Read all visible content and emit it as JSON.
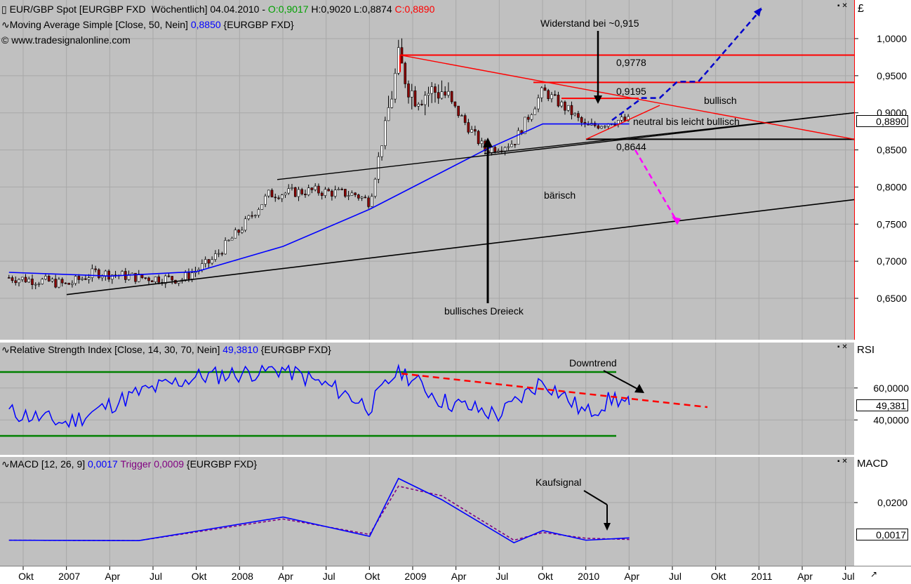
{
  "main_panel": {
    "header_line1": {
      "prefix": "EUR/GBP Spot [EURGBP FXD  Wöchentlich] 04.04.2010 - ",
      "open": "O:0,9017",
      "high_low": " H:0,9020 L:0,8874 ",
      "close": "C:0,8890"
    },
    "header_line2": {
      "label": "Moving Average Simple [Close, 50, Nein] ",
      "value": "0,8850",
      "suffix": " {EURGBP FXD}"
    },
    "header_line3": "© www.tradesignalonline.com",
    "currency_symbol": "£",
    "y_ticks": [
      "1,0000",
      "0,9500",
      "0,9000",
      "0,8500",
      "0,8000",
      "0,7500",
      "0,7000",
      "0,6500"
    ],
    "current_value": "0,8890",
    "annotations": {
      "resistance": "Widerstand bei ~0,915",
      "level_high": "0,9778",
      "level_mid": "0,9195",
      "level_low": "0,8644",
      "bullish": "bullisch",
      "neutral": "neutral bis leicht bullisch",
      "bearish": "bärisch",
      "triangle": "bullisches Dreieck"
    }
  },
  "rsi_panel": {
    "header": {
      "label": "Relative Strength Index [Close, 14, 30, 70, Nein] ",
      "value": "49,3810",
      "suffix": " {EURGBP FXD}"
    },
    "axis_title": "RSI",
    "y_ticks": [
      "60,0000",
      "40,0000"
    ],
    "current_value": "49,381",
    "annotation": "Downtrend"
  },
  "macd_panel": {
    "header": {
      "label": "MACD [12, 26, 9] ",
      "value": "0,0017",
      "trigger_label": " Trigger ",
      "trigger_value": "0,0009",
      "suffix": " {EURGBP FXD}"
    },
    "axis_title": "MACD",
    "y_ticks": [
      "0,0200"
    ],
    "current_value": "0,0017",
    "annotation": "Kaufsignal"
  },
  "x_axis": {
    "labels": [
      "Okt",
      "2007",
      "Apr",
      "Jul",
      "Okt",
      "2008",
      "Apr",
      "Jul",
      "Okt",
      "2009",
      "Apr",
      "Jul",
      "Okt",
      "2010",
      "Apr",
      "Jul",
      "Okt",
      "2011",
      "Apr",
      "Jul"
    ]
  },
  "colors": {
    "background": "#c0c0c0",
    "grid": "#a8a8a8",
    "price_line": "#000000",
    "sma": "#0000ff",
    "resistance": "#ff0000",
    "projection_up": "#0000cc",
    "projection_down": "#ff00ff",
    "rsi_line": "#0000ff",
    "rsi_bands": "#008000",
    "macd_line": "#0000ff",
    "trigger_line": "#800080"
  },
  "chart_data": [
    {
      "type": "line",
      "title": "EUR/GBP Spot weekly",
      "ylim": [
        0.6,
        1.04
      ],
      "series": [
        {
          "name": "Close",
          "x": [
            "2006-09",
            "2006-12",
            "2007-01",
            "2007-03",
            "2007-06",
            "2007-09",
            "2007-11",
            "2008-01",
            "2008-03",
            "2008-06",
            "2008-09",
            "2008-10",
            "2008-12",
            "2009-01",
            "2009-03",
            "2009-06",
            "2009-08",
            "2009-10",
            "2009-12",
            "2010-01",
            "2010-03",
            "2010-04"
          ],
          "values": [
            0.678,
            0.672,
            0.668,
            0.685,
            0.678,
            0.676,
            0.7,
            0.742,
            0.79,
            0.795,
            0.79,
            0.78,
            0.97,
            0.925,
            0.93,
            0.85,
            0.86,
            0.93,
            0.9,
            0.88,
            0.89,
            0.889
          ]
        },
        {
          "name": "Moving Average Simple [Close, 50, Nein]",
          "x": [
            "2006-09",
            "2007-04",
            "2007-10",
            "2008-04",
            "2008-10",
            "2009-02",
            "2009-06",
            "2009-10",
            "2010-01",
            "2010-04"
          ],
          "values": [
            0.685,
            0.68,
            0.686,
            0.72,
            0.77,
            0.81,
            0.85,
            0.885,
            0.885,
            0.885
          ]
        }
      ],
      "levels": [
        0.9778,
        0.9195,
        0.8644
      ]
    },
    {
      "type": "line",
      "title": "Relative Strength Index [Close, 14, 30, 70, Nein]",
      "ylim": [
        20,
        80
      ],
      "bands": [
        70,
        30
      ],
      "series": [
        {
          "name": "RSI",
          "x": [
            "2006-09",
            "2007-01",
            "2007-06",
            "2007-10",
            "2008-01",
            "2008-04",
            "2008-08",
            "2008-10",
            "2008-12",
            "2009-03",
            "2009-07",
            "2009-10",
            "2010-01",
            "2010-03",
            "2010-04"
          ],
          "values": [
            45,
            38,
            57,
            67,
            69,
            72,
            58,
            48,
            72,
            52,
            43,
            65,
            44,
            54,
            49.38
          ]
        }
      ]
    },
    {
      "type": "line",
      "title": "MACD [12, 26, 9]",
      "series": [
        {
          "name": "MACD",
          "x": [
            "2006-09",
            "2007-06",
            "2008-04",
            "2008-10",
            "2008-12",
            "2009-03",
            "2009-08",
            "2009-10",
            "2010-01",
            "2010-04"
          ],
          "values": [
            0.0005,
            0.0003,
            0.0125,
            0.0025,
            0.0325,
            0.0215,
            -0.0008,
            0.0055,
            0.0005,
            0.0017
          ]
        },
        {
          "name": "Trigger",
          "x": [
            "2006-09",
            "2007-06",
            "2008-04",
            "2008-10",
            "2008-12",
            "2009-03",
            "2009-08",
            "2009-10",
            "2010-01",
            "2010-04"
          ],
          "values": [
            0.0005,
            0.0003,
            0.0115,
            0.0035,
            0.0285,
            0.0235,
            0.0005,
            0.0045,
            0.0015,
            0.0009
          ]
        }
      ]
    }
  ]
}
